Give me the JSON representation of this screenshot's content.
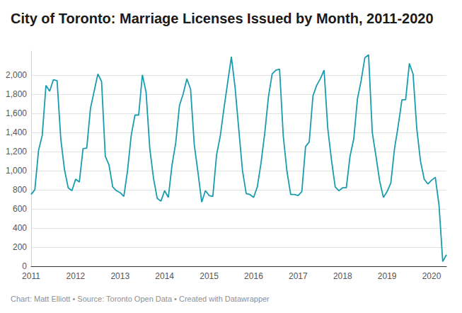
{
  "chart_data": {
    "type": "line",
    "title": "City of Toronto: Marriage Licenses Issued by Month, 2011-2020",
    "note": "Chart: Matt Elliott • Source: Toronto Open Data • Created with Datawrapper",
    "color": "#1a9cb0",
    "grid": true,
    "categories": [
      "2011",
      null,
      null,
      null,
      null,
      null,
      null,
      null,
      null,
      null,
      null,
      null,
      "2012",
      null,
      null,
      null,
      null,
      null,
      null,
      null,
      null,
      null,
      null,
      null,
      "2013",
      null,
      null,
      null,
      null,
      null,
      null,
      null,
      null,
      null,
      null,
      null,
      "2014",
      null,
      null,
      null,
      null,
      null,
      null,
      null,
      null,
      null,
      null,
      null,
      "2015",
      null,
      null,
      null,
      null,
      null,
      null,
      null,
      null,
      null,
      null,
      null,
      "2016",
      null,
      null,
      null,
      null,
      null,
      null,
      null,
      null,
      null,
      null,
      null,
      "2017",
      null,
      null,
      null,
      null,
      null,
      null,
      null,
      null,
      null,
      null,
      null,
      "2018",
      null,
      null,
      null,
      null,
      null,
      null,
      null,
      null,
      null,
      null,
      null,
      "2019",
      null,
      null,
      null,
      null,
      null,
      null,
      null,
      null,
      null,
      null,
      null,
      "2020",
      null,
      null,
      null,
      null
    ],
    "values": [
      750,
      800,
      1210,
      1370,
      1890,
      1830,
      1950,
      1940,
      1330,
      1010,
      820,
      790,
      910,
      880,
      1230,
      1235,
      1650,
      1830,
      2010,
      1930,
      1150,
      1060,
      830,
      790,
      770,
      730,
      1000,
      1370,
      1580,
      1580,
      2000,
      1820,
      1230,
      920,
      710,
      680,
      790,
      720,
      1060,
      1290,
      1680,
      1800,
      1960,
      1850,
      1270,
      980,
      670,
      790,
      740,
      730,
      1160,
      1360,
      1650,
      1920,
      2190,
      1870,
      1430,
      1000,
      760,
      750,
      720,
      830,
      1080,
      1390,
      1770,
      2010,
      2050,
      2060,
      1360,
      990,
      750,
      750,
      740,
      780,
      1250,
      1300,
      1780,
      1890,
      1960,
      2050,
      1440,
      1110,
      830,
      790,
      820,
      820,
      1150,
      1330,
      1750,
      1940,
      2180,
      2210,
      1400,
      1150,
      890,
      720,
      780,
      870,
      1230,
      1470,
      1740,
      1740,
      2120,
      2010,
      1440,
      1100,
      910,
      860,
      900,
      930,
      640,
      50,
      120
    ],
    "ylim": [
      0,
      2250
    ],
    "yticks": [
      0,
      200,
      400,
      600,
      800,
      {
        "value": 1000,
        "label": "1,000"
      },
      {
        "value": 1200,
        "label": "1,200"
      },
      {
        "value": 1400,
        "label": "1,400"
      },
      {
        "value": 1600,
        "label": "1,600"
      },
      {
        "value": 1800,
        "label": "1,800"
      },
      {
        "value": 2000,
        "label": "2,000"
      }
    ]
  }
}
